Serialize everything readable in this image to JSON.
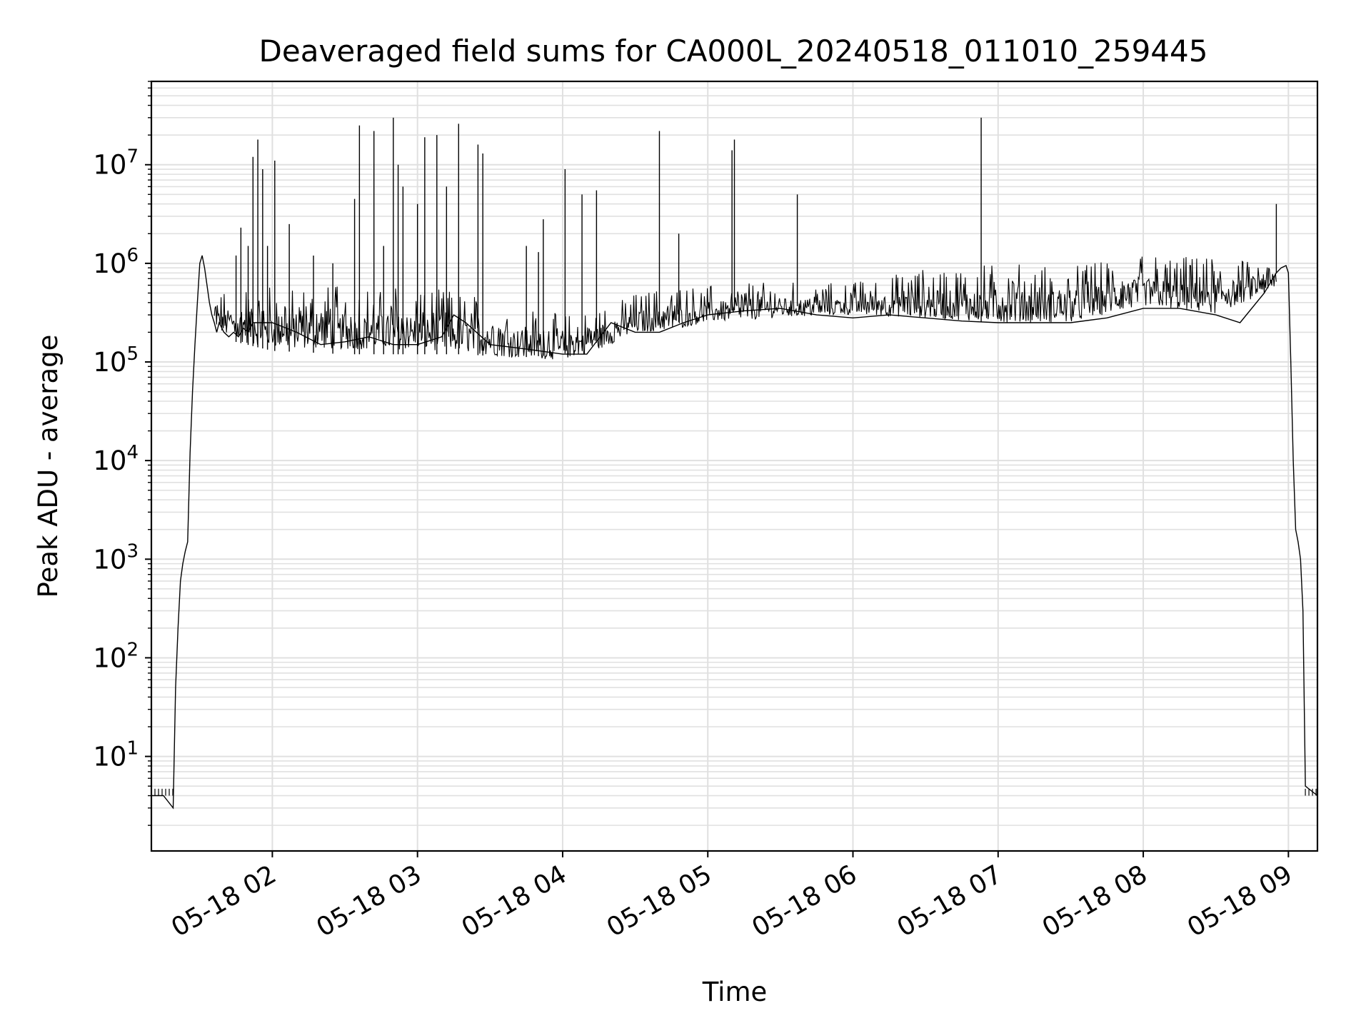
{
  "chart_data": {
    "type": "line",
    "title": "Deaveraged field sums for CA000L_20240518_011010_259445",
    "xlabel": "Time",
    "ylabel": "Peak ADU - average",
    "yscale": "log",
    "ylim": [
      1.1,
      70000000
    ],
    "xlim": [
      "2024-05-18T01:10:00",
      "2024-05-18T09:12:00"
    ],
    "grid": true,
    "line_color": "#000000",
    "grid_color": "#e0e0e0",
    "xticks": [
      {
        "t": "2024-05-18T02:00:00",
        "label": "05-18 02"
      },
      {
        "t": "2024-05-18T03:00:00",
        "label": "05-18 03"
      },
      {
        "t": "2024-05-18T04:00:00",
        "label": "05-18 04"
      },
      {
        "t": "2024-05-18T05:00:00",
        "label": "05-18 05"
      },
      {
        "t": "2024-05-18T06:00:00",
        "label": "05-18 06"
      },
      {
        "t": "2024-05-18T07:00:00",
        "label": "05-18 07"
      },
      {
        "t": "2024-05-18T08:00:00",
        "label": "05-18 08"
      },
      {
        "t": "2024-05-18T09:00:00",
        "label": "05-18 09"
      }
    ],
    "yticks": [
      {
        "value": 10,
        "base": "10",
        "exp": "1"
      },
      {
        "value": 100,
        "base": "10",
        "exp": "2"
      },
      {
        "value": 1000,
        "base": "10",
        "exp": "3"
      },
      {
        "value": 10000,
        "base": "10",
        "exp": "4"
      },
      {
        "value": 100000,
        "base": "10",
        "exp": "5"
      },
      {
        "value": 1000000,
        "base": "10",
        "exp": "6"
      },
      {
        "value": 10000000,
        "base": "10",
        "exp": "7"
      }
    ],
    "series": [
      {
        "x": [
          "2024-05-18T01:10:00",
          "2024-05-18T01:15:00",
          "2024-05-18T01:19:00",
          "2024-05-18T01:20:00",
          "2024-05-18T01:21:00",
          "2024-05-18T01:22:00",
          "2024-05-18T01:23:00",
          "2024-05-18T01:24:00",
          "2024-05-18T01:25:00",
          "2024-05-18T01:26:00",
          "2024-05-18T01:27:00",
          "2024-05-18T01:28:00",
          "2024-05-18T01:29:00",
          "2024-05-18T01:30:00",
          "2024-05-18T01:31:00",
          "2024-05-18T01:32:00",
          "2024-05-18T01:33:00",
          "2024-05-18T01:34:00",
          "2024-05-18T01:35:00",
          "2024-05-18T01:36:00",
          "2024-05-18T01:37:00",
          "2024-05-18T01:38:00",
          "2024-05-18T01:40:00",
          "2024-05-18T01:42:00",
          "2024-05-18T01:44:00",
          "2024-05-18T01:46:00",
          "2024-05-18T01:48:00",
          "2024-05-18T01:50:00",
          "2024-05-18T01:52:00",
          "2024-05-18T01:55:00",
          "2024-05-18T02:00:00",
          "2024-05-18T02:10:00",
          "2024-05-18T02:20:00",
          "2024-05-18T02:30:00",
          "2024-05-18T02:40:00",
          "2024-05-18T02:50:00",
          "2024-05-18T03:00:00",
          "2024-05-18T03:10:00",
          "2024-05-18T03:15:00",
          "2024-05-18T03:20:00",
          "2024-05-18T03:30:00",
          "2024-05-18T03:40:00",
          "2024-05-18T03:50:00",
          "2024-05-18T04:00:00",
          "2024-05-18T04:10:00",
          "2024-05-18T04:20:00",
          "2024-05-18T04:30:00",
          "2024-05-18T04:40:00",
          "2024-05-18T04:50:00",
          "2024-05-18T05:00:00",
          "2024-05-18T05:15:00",
          "2024-05-18T05:30:00",
          "2024-05-18T05:45:00",
          "2024-05-18T06:00:00",
          "2024-05-18T06:15:00",
          "2024-05-18T06:30:00",
          "2024-05-18T06:45:00",
          "2024-05-18T07:00:00",
          "2024-05-18T07:15:00",
          "2024-05-18T07:30:00",
          "2024-05-18T07:45:00",
          "2024-05-18T08:00:00",
          "2024-05-18T08:15:00",
          "2024-05-18T08:30:00",
          "2024-05-18T08:40:00",
          "2024-05-18T08:50:00",
          "2024-05-18T08:55:00",
          "2024-05-18T08:57:00",
          "2024-05-18T08:59:00",
          "2024-05-18T09:00:00",
          "2024-05-18T09:01:00",
          "2024-05-18T09:02:00",
          "2024-05-18T09:03:00",
          "2024-05-18T09:04:00",
          "2024-05-18T09:05:00",
          "2024-05-18T09:06:00",
          "2024-05-18T09:07:00",
          "2024-05-18T09:12:00"
        ],
        "y": [
          4,
          4,
          3,
          50,
          200,
          600,
          900,
          1200,
          1500,
          12000,
          50000,
          150000,
          400000,
          1000000,
          1200000,
          900000,
          600000,
          400000,
          300000,
          250000,
          200000,
          250000,
          200000,
          180000,
          200000,
          180000,
          220000,
          200000,
          250000,
          250000,
          250000,
          200000,
          150000,
          160000,
          180000,
          150000,
          150000,
          180000,
          300000,
          250000,
          150000,
          140000,
          130000,
          120000,
          120000,
          250000,
          200000,
          200000,
          250000,
          300000,
          330000,
          350000,
          300000,
          280000,
          300000,
          280000,
          260000,
          250000,
          250000,
          250000,
          280000,
          350000,
          350000,
          300000,
          250000,
          500000,
          800000,
          900000,
          950000,
          800000,
          100000,
          10000,
          2000,
          1500,
          1000,
          300,
          5,
          4
        ],
        "spikes": [
          {
            "t": "2024-05-18T01:45:00",
            "y": 1200000
          },
          {
            "t": "2024-05-18T01:47:00",
            "y": 2300000
          },
          {
            "t": "2024-05-18T01:50:00",
            "y": 1500000
          },
          {
            "t": "2024-05-18T01:52:00",
            "y": 12000000
          },
          {
            "t": "2024-05-18T01:54:00",
            "y": 18000000
          },
          {
            "t": "2024-05-18T01:56:00",
            "y": 9000000
          },
          {
            "t": "2024-05-18T01:58:00",
            "y": 1500000
          },
          {
            "t": "2024-05-18T02:01:00",
            "y": 11000000
          },
          {
            "t": "2024-05-18T02:07:00",
            "y": 2500000
          },
          {
            "t": "2024-05-18T02:17:00",
            "y": 1200000
          },
          {
            "t": "2024-05-18T02:25:00",
            "y": 1000000
          },
          {
            "t": "2024-05-18T02:34:00",
            "y": 4500000
          },
          {
            "t": "2024-05-18T02:36:00",
            "y": 25000000
          },
          {
            "t": "2024-05-18T02:42:00",
            "y": 22000000
          },
          {
            "t": "2024-05-18T02:46:00",
            "y": 1500000
          },
          {
            "t": "2024-05-18T02:50:00",
            "y": 30000000
          },
          {
            "t": "2024-05-18T02:52:00",
            "y": 10000000
          },
          {
            "t": "2024-05-18T02:54:00",
            "y": 6000000
          },
          {
            "t": "2024-05-18T03:00:00",
            "y": 4000000
          },
          {
            "t": "2024-05-18T03:03:00",
            "y": 19000000
          },
          {
            "t": "2024-05-18T03:08:00",
            "y": 20000000
          },
          {
            "t": "2024-05-18T03:12:00",
            "y": 6000000
          },
          {
            "t": "2024-05-18T03:17:00",
            "y": 26000000
          },
          {
            "t": "2024-05-18T03:25:00",
            "y": 16000000
          },
          {
            "t": "2024-05-18T03:27:00",
            "y": 13000000
          },
          {
            "t": "2024-05-18T03:45:00",
            "y": 1500000
          },
          {
            "t": "2024-05-18T03:50:00",
            "y": 1300000
          },
          {
            "t": "2024-05-18T03:52:00",
            "y": 2800000
          },
          {
            "t": "2024-05-18T04:01:00",
            "y": 9000000
          },
          {
            "t": "2024-05-18T04:08:00",
            "y": 5000000
          },
          {
            "t": "2024-05-18T04:14:00",
            "y": 5500000
          },
          {
            "t": "2024-05-18T04:40:00",
            "y": 22000000
          },
          {
            "t": "2024-05-18T04:48:00",
            "y": 2000000
          },
          {
            "t": "2024-05-18T05:10:00",
            "y": 14000000
          },
          {
            "t": "2024-05-18T05:11:00",
            "y": 18000000
          },
          {
            "t": "2024-05-18T05:37:00",
            "y": 5000000
          },
          {
            "t": "2024-05-18T06:53:00",
            "y": 30000000
          },
          {
            "t": "2024-05-18T08:55:00",
            "y": 4000000
          }
        ],
        "noise_band_x": [
          "2024-05-18T01:36:00",
          "2024-05-18T01:45:00",
          "2024-05-18T02:00:00",
          "2024-05-18T02:30:00",
          "2024-05-18T03:00:00",
          "2024-05-18T03:20:00",
          "2024-05-18T03:40:00",
          "2024-05-18T04:00:00",
          "2024-05-18T04:15:00",
          "2024-05-18T04:30:00",
          "2024-05-18T04:45:00",
          "2024-05-18T05:00:00",
          "2024-05-18T05:30:00",
          "2024-05-18T06:00:00",
          "2024-05-18T06:30:00",
          "2024-05-18T07:00:00",
          "2024-05-18T07:30:00",
          "2024-05-18T08:00:00",
          "2024-05-18T08:30:00",
          "2024-05-18T08:55:00"
        ],
        "noise_low": [
          150000,
          80000,
          65000,
          60000,
          60000,
          60000,
          55000,
          60000,
          80000,
          120000,
          120000,
          160000,
          180000,
          200000,
          150000,
          120000,
          120000,
          200000,
          150000,
          400000
        ],
        "noise_high": [
          500000,
          600000,
          600000,
          600000,
          600000,
          500000,
          400000,
          300000,
          350000,
          500000,
          600000,
          600000,
          650000,
          650000,
          900000,
          1000000,
          1000000,
          1200000,
          1200000,
          1000000
        ]
      }
    ]
  }
}
